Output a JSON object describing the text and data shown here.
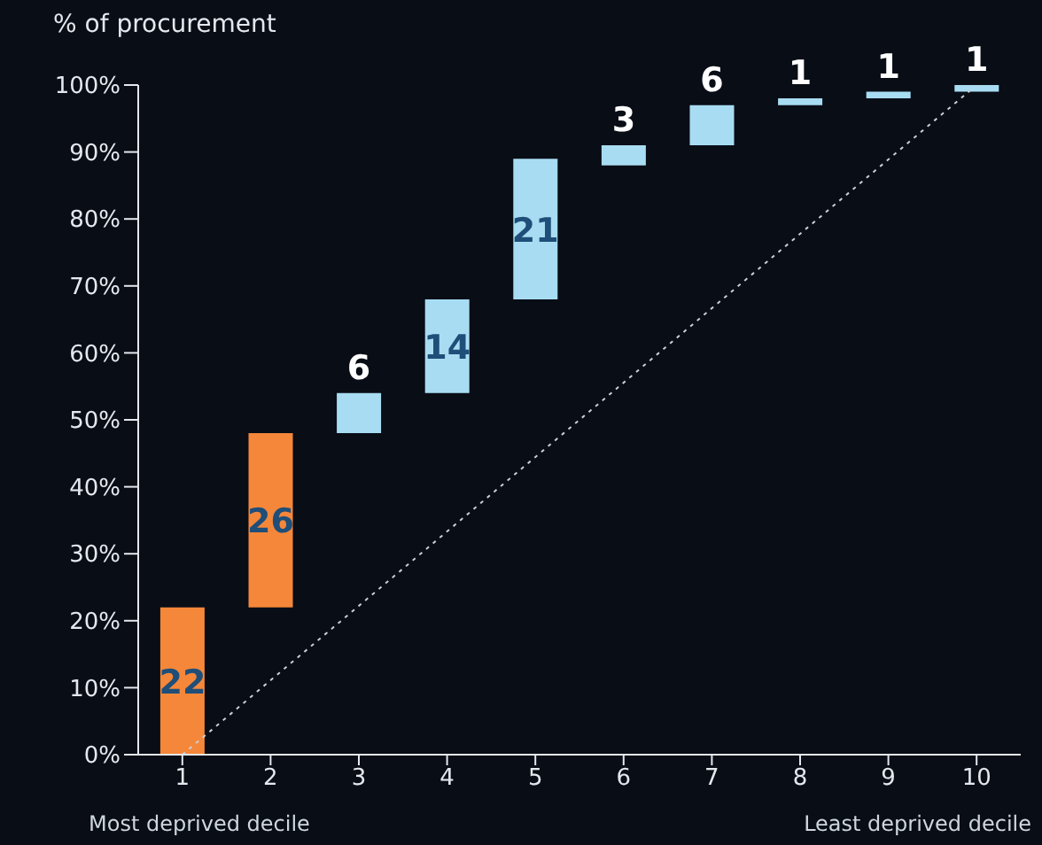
{
  "chart_data": {
    "type": "bar",
    "ylabel": "% of procurement",
    "categories": [
      "1",
      "2",
      "3",
      "4",
      "5",
      "6",
      "7",
      "8",
      "9",
      "10"
    ],
    "series": [
      {
        "values": [
          22,
          26,
          6,
          14,
          21,
          3,
          6,
          1,
          1,
          1
        ],
        "value_labels": [
          "22",
          "26",
          "6",
          "14",
          "21",
          "3",
          "6",
          "1",
          "1",
          "1"
        ],
        "base": [
          0,
          22,
          48,
          54,
          68,
          88,
          91,
          97,
          98,
          99
        ],
        "colors": [
          "#f5873a",
          "#f5873a",
          "#a8dcf2",
          "#a8dcf2",
          "#a8dcf2",
          "#a8dcf2",
          "#a8dcf2",
          "#a8dcf2",
          "#a8dcf2",
          "#a8dcf2"
        ]
      },
      {
        "type": "line",
        "x": [
          "1",
          "10"
        ],
        "values": [
          0,
          100
        ],
        "color": "#c8d0d8",
        "line_style": "dotted"
      }
    ],
    "ylim": [
      0,
      100
    ],
    "yticks": [
      {
        "value": 0,
        "label": "0%"
      },
      {
        "value": 10,
        "label": "10%"
      },
      {
        "value": 20,
        "label": "20%"
      },
      {
        "value": 30,
        "label": "30%"
      },
      {
        "value": 40,
        "label": "40%"
      },
      {
        "value": 50,
        "label": "50%"
      },
      {
        "value": 60,
        "label": "60%"
      },
      {
        "value": 70,
        "label": "70%"
      },
      {
        "value": 80,
        "label": "80%"
      },
      {
        "value": 90,
        "label": "90%"
      },
      {
        "value": 100,
        "label": "100%"
      }
    ],
    "grid": false,
    "legend": false,
    "annotations": [
      "Most deprived decile",
      "Least deprived decile"
    ]
  }
}
